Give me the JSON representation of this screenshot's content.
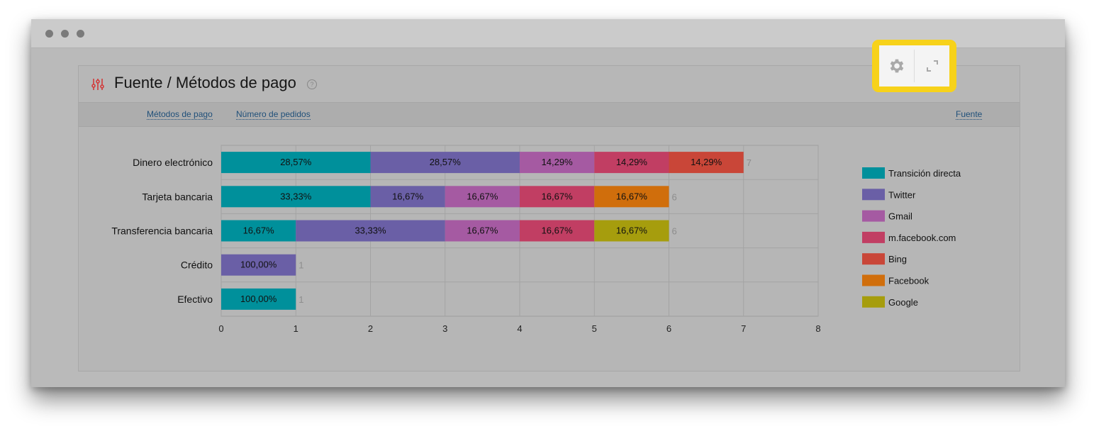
{
  "card": {
    "title": "Fuente / Métodos de pago",
    "help": "?",
    "tabs": [
      {
        "label": "Métodos de pago"
      },
      {
        "label": "Número de pedidos"
      },
      {
        "label": "Fuente"
      }
    ]
  },
  "colors": {
    "Transición directa": "#00909b",
    "Twitter": "#6a5fa6",
    "Gmail": "#a55aa2",
    "m.facebook.com": "#c13e63",
    "Bing": "#c94638",
    "Facebook": "#d06e0c",
    "Google": "#a69d0d"
  },
  "icons": [
    "filter-icon",
    "help-icon",
    "gear-icon",
    "expand-icon"
  ],
  "chart_data": {
    "type": "bar",
    "orientation": "horizontal",
    "stacked": true,
    "categories": [
      "Dinero electrónico",
      "Tarjeta bancaria",
      "Transferencia bancaria",
      "Crédito",
      "Efectivo"
    ],
    "totals": [
      7,
      6,
      6,
      1,
      1
    ],
    "series": [
      {
        "name": "Transición directa",
        "values": [
          2,
          2,
          1,
          0,
          1
        ],
        "labels": [
          "28,57%",
          "33,33%",
          "16,67%",
          "",
          "100,00%"
        ]
      },
      {
        "name": "Twitter",
        "values": [
          2,
          1,
          2,
          1,
          0
        ],
        "labels": [
          "28,57%",
          "16,67%",
          "33,33%",
          "100,00%",
          ""
        ]
      },
      {
        "name": "Gmail",
        "values": [
          1,
          1,
          1,
          0,
          0
        ],
        "labels": [
          "14,29%",
          "16,67%",
          "16,67%",
          "",
          ""
        ]
      },
      {
        "name": "m.facebook.com",
        "values": [
          1,
          1,
          1,
          0,
          0
        ],
        "labels": [
          "14,29%",
          "16,67%",
          "16,67%",
          "",
          ""
        ]
      },
      {
        "name": "Bing",
        "values": [
          1,
          0,
          0,
          0,
          0
        ],
        "labels": [
          "14,29%",
          "",
          "",
          "",
          ""
        ]
      },
      {
        "name": "Facebook",
        "values": [
          0,
          1,
          0,
          0,
          0
        ],
        "labels": [
          "",
          "16,67%",
          "",
          "",
          ""
        ]
      },
      {
        "name": "Google",
        "values": [
          0,
          0,
          1,
          0,
          0
        ],
        "labels": [
          "",
          "",
          "16,67%",
          "",
          ""
        ]
      }
    ],
    "xticks": [
      0,
      1,
      2,
      3,
      4,
      5,
      6,
      7,
      8
    ],
    "xlim": [
      0,
      8
    ],
    "grid": true,
    "legend": "right"
  }
}
